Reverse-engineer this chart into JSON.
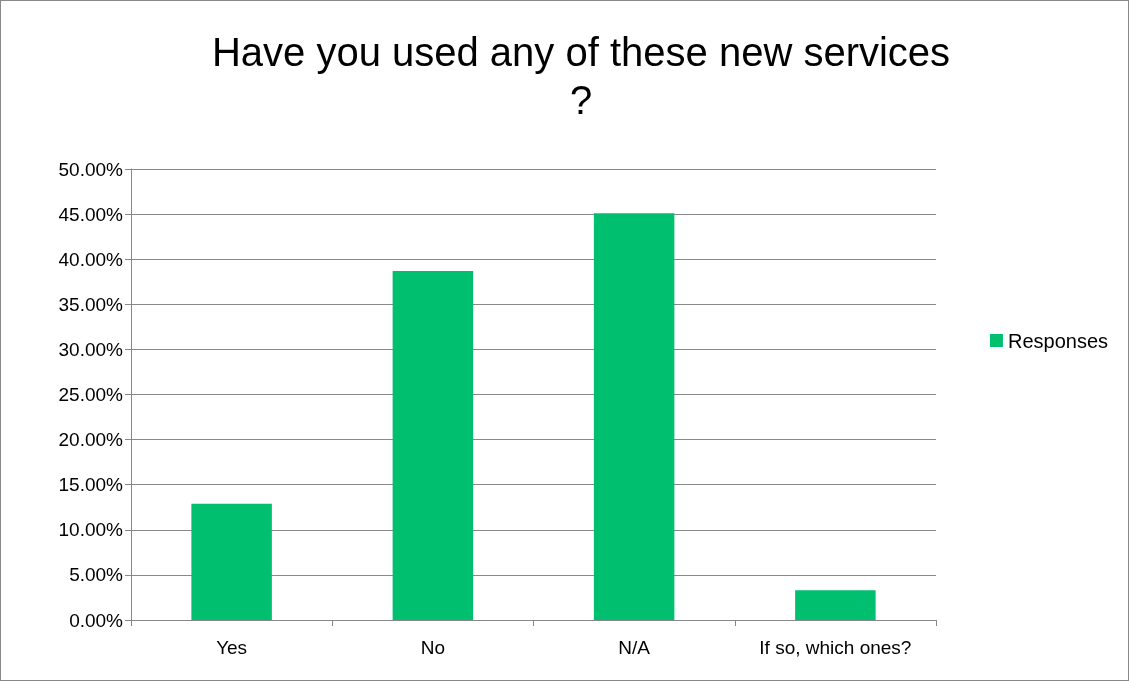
{
  "chart_data": {
    "type": "bar",
    "title": "Have you used any of these new services?",
    "categories": [
      "Yes",
      "No",
      "N/A",
      "If so, which ones?"
    ],
    "series": [
      {
        "name": "Responses",
        "color": "#00bf6f",
        "values": [
          12.9,
          38.7,
          45.1,
          3.3
        ]
      }
    ],
    "ylim": [
      0,
      50
    ],
    "yticks": [
      {
        "value": 0,
        "label": "0.00%"
      },
      {
        "value": 5,
        "label": "5.00%"
      },
      {
        "value": 10,
        "label": "10.00%"
      },
      {
        "value": 15,
        "label": "15.00%"
      },
      {
        "value": 20,
        "label": "20.00%"
      },
      {
        "value": 25,
        "label": "25.00%"
      },
      {
        "value": 30,
        "label": "30.00%"
      },
      {
        "value": 35,
        "label": "35.00%"
      },
      {
        "value": 40,
        "label": "40.00%"
      },
      {
        "value": 45,
        "label": "45.00%"
      },
      {
        "value": 50,
        "label": "50.00%"
      }
    ],
    "grid": "y",
    "legend": "right"
  }
}
